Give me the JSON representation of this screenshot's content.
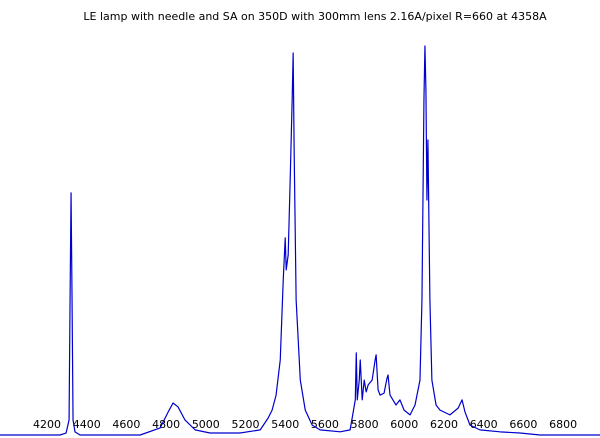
{
  "chart_data": {
    "type": "line",
    "title": "LE lamp with needle and SA on 350D with 300mm lens  2.16A/pixel R=660 at 4358A",
    "x": [
      3963,
      4265,
      4296,
      4311,
      4316,
      4321,
      4326,
      4331,
      4341,
      4366,
      4669,
      4770,
      4810,
      4835,
      4860,
      4895,
      4946,
      5021,
      5172,
      5274,
      5314,
      5334,
      5354,
      5375,
      5390,
      5400,
      5405,
      5415,
      5425,
      5435,
      5440,
      5445,
      5455,
      5476,
      5501,
      5536,
      5576,
      5677,
      5727,
      5753,
      5758,
      5763,
      5773,
      5778,
      5788,
      5798,
      5808,
      5818,
      5838,
      5853,
      5858,
      5868,
      5878,
      5898,
      5913,
      5918,
      5928,
      5958,
      5978,
      5999,
      6029,
      6054,
      6079,
      6089,
      6099,
      6104,
      6109,
      6114,
      6119,
      6129,
      6139,
      6160,
      6180,
      6230,
      6271,
      6291,
      6306,
      6331,
      6381,
      6482,
      6583,
      6684,
      6986
    ],
    "values": [
      0,
      0,
      0.5,
      3.8,
      34.2,
      61.3,
      34.2,
      3.8,
      0.8,
      0,
      0,
      1.8,
      5.8,
      8.1,
      7.1,
      3.8,
      1.3,
      0.5,
      0.5,
      1.3,
      4.3,
      6.3,
      10.1,
      19,
      39.2,
      49.9,
      41.8,
      45.6,
      64.6,
      84.8,
      96.7,
      72.2,
      34.2,
      13.9,
      6.3,
      2.5,
      1.3,
      0.8,
      1.3,
      8.9,
      20.8,
      8.9,
      13.9,
      19,
      8.9,
      13.9,
      10.9,
      12.7,
      13.9,
      19,
      20.3,
      11.4,
      10.1,
      10.6,
      14.4,
      15.2,
      10.1,
      7.6,
      8.9,
      6.3,
      5.1,
      7.6,
      13.9,
      34.2,
      84.8,
      98.5,
      87.3,
      59.5,
      74.7,
      34.2,
      13.9,
      7.6,
      6.3,
      5.1,
      6.8,
      8.9,
      5.8,
      2.5,
      1.3,
      0.8,
      0.5,
      0,
      0
    ],
    "color": "#0000cc",
    "xlim": [
      3963,
      6986
    ],
    "ylim": [
      0,
      100
    ],
    "xticks": [
      4200,
      4400,
      4600,
      4800,
      5000,
      5200,
      5400,
      5600,
      5800,
      6000,
      6200,
      6400,
      6600,
      6800
    ]
  }
}
